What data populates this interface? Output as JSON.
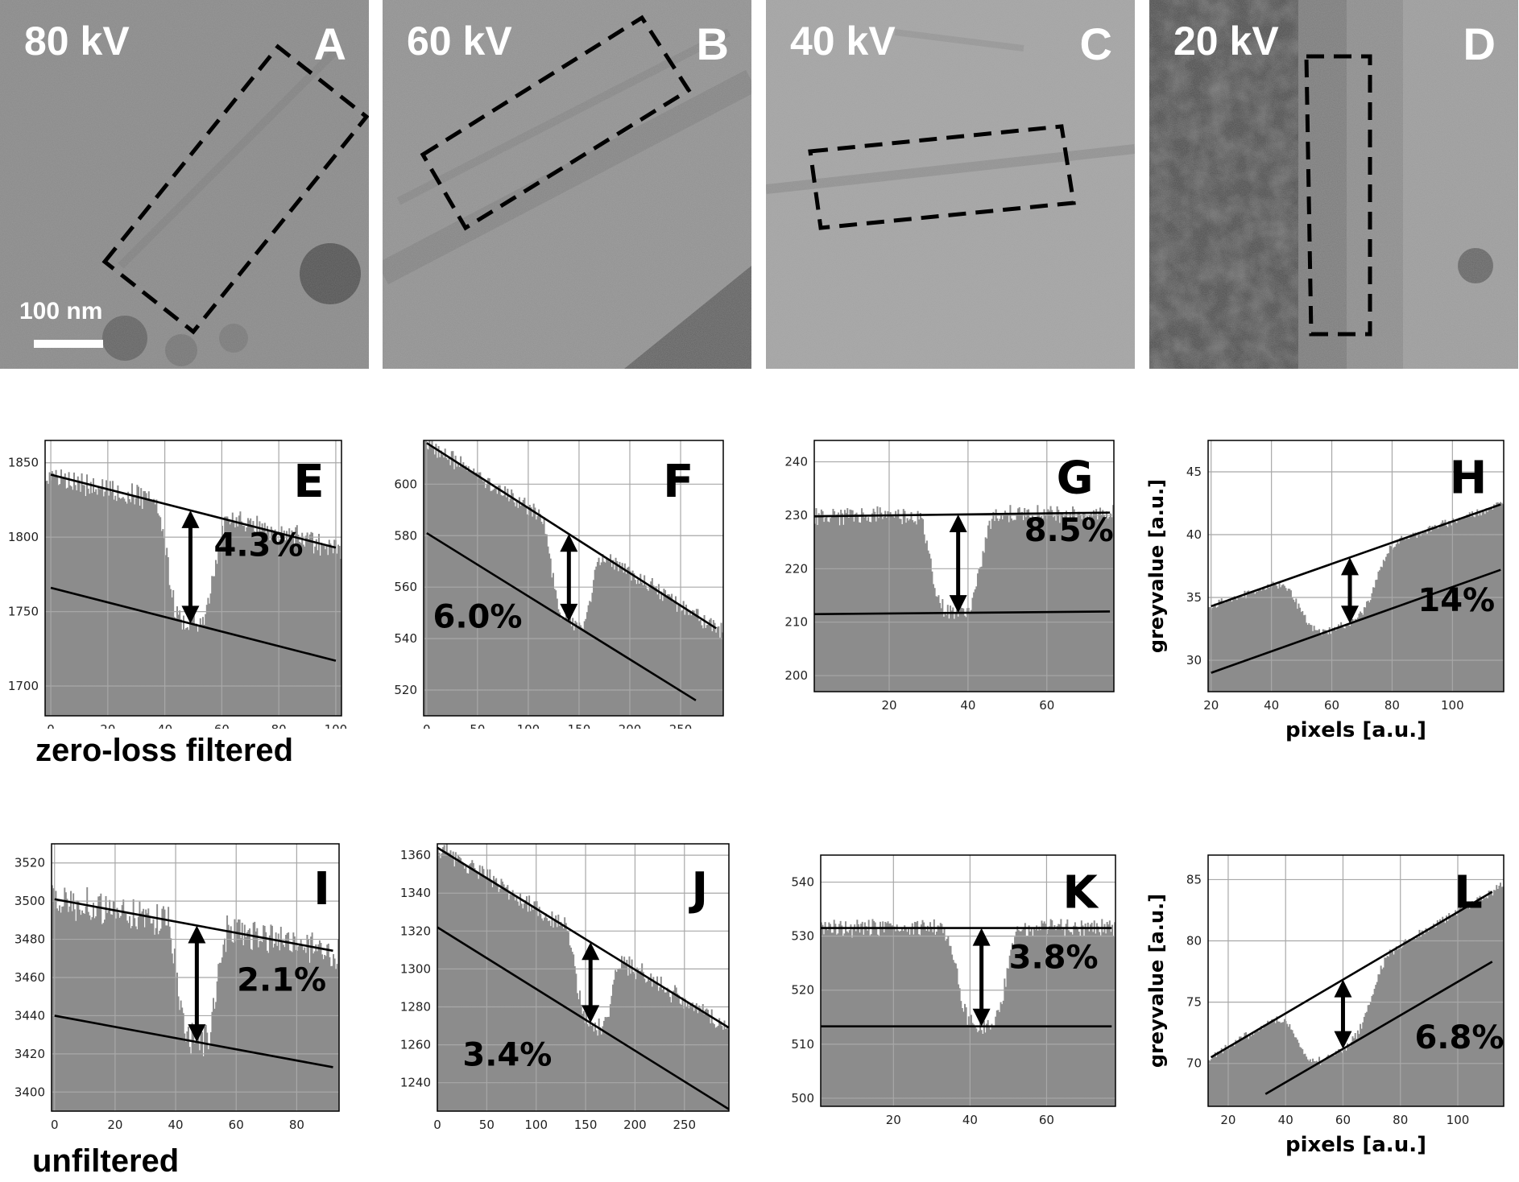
{
  "figure": {
    "micrographs": [
      {
        "letter": "A",
        "voltage": "80 kV",
        "scale_bar": "100 nm"
      },
      {
        "letter": "B",
        "voltage": "60 kV",
        "scale_bar": ""
      },
      {
        "letter": "C",
        "voltage": "40 kV",
        "scale_bar": ""
      },
      {
        "letter": "D",
        "voltage": "20 kV",
        "scale_bar": ""
      }
    ],
    "row_labels": {
      "zero_loss": "zero-loss filtered",
      "unfiltered": "unfiltered"
    },
    "colors": {
      "histogram": "#8c8c8c",
      "grid": "#a8a8a8",
      "line": "#000000",
      "background": "#ffffff"
    }
  },
  "chart_data": [
    {
      "panel": "E",
      "type": "bar",
      "row": "zero-loss filtered",
      "kV": 80,
      "xlim": [
        -2,
        102
      ],
      "ylim": [
        1680,
        1865
      ],
      "xticks": [
        0,
        20,
        40,
        60,
        80,
        100
      ],
      "yticks": [
        1700,
        1750,
        1800,
        1850
      ],
      "baseline": 1740,
      "noise": 14,
      "dip_center": 49,
      "dip_width": 9,
      "upper_line": [
        [
          0,
          1842
        ],
        [
          100,
          1793
        ]
      ],
      "lower_line": [
        [
          0,
          1766
        ],
        [
          100,
          1717
        ]
      ],
      "arrow_x": 49,
      "contrast": "4.3%",
      "xlabel": "",
      "ylabel": ""
    },
    {
      "panel": "F",
      "type": "bar",
      "row": "zero-loss filtered",
      "kV": 60,
      "xlim": [
        -3,
        292
      ],
      "ylim": [
        510,
        617
      ],
      "xticks": [
        0,
        50,
        100,
        150,
        200,
        250
      ],
      "yticks": [
        520,
        540,
        560,
        580,
        600
      ],
      "baseline": 540,
      "noise": 6,
      "dip_center": 143,
      "dip_width": 22,
      "upper_line": [
        [
          0,
          616
        ],
        [
          285,
          544
        ]
      ],
      "lower_line": [
        [
          0,
          581
        ],
        [
          265,
          516
        ]
      ],
      "arrow_x": 140,
      "contrast": "6.0%",
      "xlabel": "",
      "ylabel": ""
    },
    {
      "panel": "G",
      "type": "bar",
      "row": "zero-loss filtered",
      "kV": 40,
      "xlim": [
        1,
        77
      ],
      "ylim": [
        197,
        244
      ],
      "xticks": [
        20,
        40,
        60
      ],
      "yticks": [
        200,
        210,
        220,
        230,
        240
      ],
      "baseline": 205,
      "noise": 3,
      "dip_center": 37,
      "dip_width": 7,
      "upper_line": [
        [
          1,
          229.8
        ],
        [
          76,
          230.5
        ]
      ],
      "lower_line": [
        [
          1,
          211.5
        ],
        [
          76,
          212.0
        ]
      ],
      "arrow_x": 37.5,
      "contrast": "8.5%",
      "xlabel": "",
      "ylabel": ""
    },
    {
      "panel": "H",
      "type": "bar",
      "row": "zero-loss filtered",
      "kV": 20,
      "xlim": [
        19,
        117
      ],
      "ylim": [
        27.5,
        47.5
      ],
      "xticks": [
        20,
        40,
        60,
        80,
        100
      ],
      "yticks": [
        30,
        35,
        40,
        45
      ],
      "baseline": 26,
      "noise": 0.6,
      "dip_center": 62,
      "dip_width": 14,
      "upper_line": [
        [
          20,
          34.3
        ],
        [
          116,
          42.4
        ]
      ],
      "lower_line": [
        [
          20,
          29.0
        ],
        [
          116,
          37.2
        ]
      ],
      "arrow_x": 66,
      "contrast": "14%",
      "xlabel": "pixels [a.u.]",
      "ylabel": "greyvalue [a.u.]"
    },
    {
      "panel": "I",
      "type": "bar",
      "row": "unfiltered",
      "kV": 80,
      "xlim": [
        -1,
        94
      ],
      "ylim": [
        3390,
        3530
      ],
      "xticks": [
        0,
        20,
        40,
        60,
        80
      ],
      "yticks": [
        3400,
        3420,
        3440,
        3460,
        3480,
        3500,
        3520
      ],
      "baseline": 3420,
      "noise": 16,
      "dip_center": 47,
      "dip_width": 7,
      "upper_line": [
        [
          0,
          3501
        ],
        [
          92,
          3474
        ]
      ],
      "lower_line": [
        [
          0,
          3440
        ],
        [
          92,
          3413
        ]
      ],
      "arrow_x": 47,
      "contrast": "2.1%",
      "xlabel": "",
      "ylabel": ""
    },
    {
      "panel": "J",
      "type": "bar",
      "row": "unfiltered",
      "kV": 60,
      "xlim": [
        0,
        295
      ],
      "ylim": [
        1225,
        1366
      ],
      "xticks": [
        0,
        50,
        100,
        150,
        200,
        250
      ],
      "yticks": [
        1240,
        1260,
        1280,
        1300,
        1320,
        1340,
        1360
      ],
      "baseline": 1260,
      "noise": 9,
      "dip_center": 158,
      "dip_width": 20,
      "upper_line": [
        [
          0,
          1364
        ],
        [
          295,
          1269
        ]
      ],
      "lower_line": [
        [
          0,
          1322
        ],
        [
          295,
          1226
        ]
      ],
      "arrow_x": 155,
      "contrast": "3.4%",
      "xlabel": "",
      "ylabel": ""
    },
    {
      "panel": "K",
      "type": "bar",
      "row": "unfiltered",
      "kV": 40,
      "xlim": [
        1,
        78
      ],
      "ylim": [
        498.5,
        545
      ],
      "xticks": [
        20,
        40,
        60
      ],
      "yticks": [
        500,
        510,
        520,
        530,
        540
      ],
      "baseline": 505,
      "noise": 3,
      "dip_center": 43,
      "dip_width": 7,
      "upper_line": [
        [
          1,
          531.5
        ],
        [
          77,
          531.5
        ]
      ],
      "lower_line": [
        [
          1,
          513.3
        ],
        [
          77,
          513.3
        ]
      ],
      "arrow_x": 43,
      "contrast": "3.8%",
      "xlabel": "",
      "ylabel": ""
    },
    {
      "panel": "L",
      "type": "bar",
      "row": "unfiltered",
      "kV": 20,
      "xlim": [
        13,
        116
      ],
      "ylim": [
        66.5,
        87
      ],
      "xticks": [
        20,
        40,
        60,
        80,
        100
      ],
      "yticks": [
        70,
        75,
        80,
        85
      ],
      "baseline": 64,
      "noise": 0.6,
      "dip_center": 57,
      "dip_width": 14,
      "upper_line": [
        [
          14,
          70.5
        ],
        [
          112,
          84.0
        ]
      ],
      "lower_line": [
        [
          33,
          67.5
        ],
        [
          112,
          78.3
        ]
      ],
      "arrow_x": 60,
      "contrast": "6.8%",
      "xlabel": "pixels [a.u.]",
      "ylabel": "greyvalue [a.u.]"
    }
  ]
}
